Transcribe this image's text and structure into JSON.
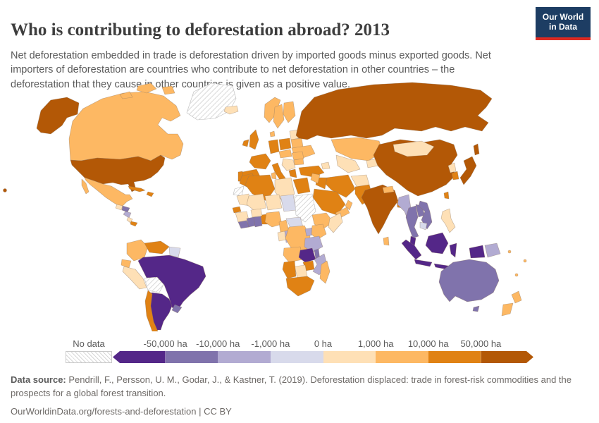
{
  "header": {
    "title": "Who is contributing to deforestation abroad? 2013",
    "logo_line1": "Our World",
    "logo_line2": "in Data"
  },
  "subtitle": "Net deforestation embedded in trade is deforestation driven by imported goods minus exported goods. Net importers of deforestation are countries who contribute to net deforestation in other countries – the deforestation that they cause in other countries is given as a positive value.",
  "legend": {
    "no_data_label": "No data",
    "tick_labels": [
      "-50,000 ha",
      "-10,000 ha",
      "-1,000 ha",
      "0 ha",
      "1,000 ha",
      "10,000 ha",
      "50,000 ha"
    ],
    "bin_colors": [
      "#542788",
      "#8073ac",
      "#b2abd2",
      "#d8daeb",
      "#fee0b6",
      "#fdb863",
      "#e08214",
      "#b35806"
    ]
  },
  "footer": {
    "source_label": "Data source:",
    "source_text": " Pendrill, F., Persson, U. M., Godar, J., & Kastner, T. (2019). Deforestation displaced: trade in forest-risk commodities and the prospects for a global forest transition.",
    "citation_line": "OurWorldinData.org/forests-and-deforestation | CC BY"
  },
  "chart_data": {
    "type": "choropleth-map",
    "title": "Who is contributing to deforestation abroad?",
    "year": 2013,
    "unit": "ha",
    "legend_position": "bottom",
    "no_data_style": "diagonal-hatch",
    "bins": [
      {
        "index": 0,
        "label": "less than -50,000 ha",
        "color": "#542788"
      },
      {
        "index": 1,
        "label": "-50,000 to -10,000 ha",
        "color": "#8073ac"
      },
      {
        "index": 2,
        "label": "-10,000 to -1,000 ha",
        "color": "#b2abd2"
      },
      {
        "index": 3,
        "label": "-1,000 to 0 ha",
        "color": "#d8daeb"
      },
      {
        "index": 4,
        "label": "0 to 1,000 ha",
        "color": "#fee0b6"
      },
      {
        "index": 5,
        "label": "1,000 to 10,000 ha",
        "color": "#fdb863"
      },
      {
        "index": 6,
        "label": "10,000 to 50,000 ha",
        "color": "#e08214"
      },
      {
        "index": 7,
        "label": "more than 50,000 ha",
        "color": "#b35806"
      }
    ],
    "countries": {
      "united-states": {
        "name": "United States",
        "bin": 7
      },
      "canada": {
        "name": "Canada",
        "bin": 5
      },
      "greenland": {
        "name": "Greenland",
        "bin": -1
      },
      "mexico": {
        "name": "Mexico",
        "bin": 5
      },
      "guatemala": {
        "name": "Guatemala",
        "bin": 4
      },
      "honduras": {
        "name": "Honduras",
        "bin": 1
      },
      "nicaragua": {
        "name": "Nicaragua",
        "bin": 2
      },
      "costa-rica": {
        "name": "Costa Rica",
        "bin": 4
      },
      "panama": {
        "name": "Panama",
        "bin": 6
      },
      "cuba": {
        "name": "Cuba",
        "bin": 6
      },
      "hispaniola": {
        "name": "Haiti / Dominican Republic",
        "bin": 6
      },
      "colombia": {
        "name": "Colombia",
        "bin": 5
      },
      "venezuela": {
        "name": "Venezuela",
        "bin": 6
      },
      "guyanas": {
        "name": "Guyana / Suriname / French Guiana",
        "bin": 3
      },
      "ecuador": {
        "name": "Ecuador",
        "bin": 5
      },
      "peru": {
        "name": "Peru",
        "bin": 4
      },
      "bolivia": {
        "name": "Bolivia",
        "bin": -1
      },
      "brazil": {
        "name": "Brazil",
        "bin": 0
      },
      "paraguay": {
        "name": "Paraguay",
        "bin": 0
      },
      "uruguay": {
        "name": "Uruguay",
        "bin": 1
      },
      "argentina": {
        "name": "Argentina",
        "bin": 0
      },
      "chile": {
        "name": "Chile",
        "bin": 6
      },
      "iceland": {
        "name": "Iceland",
        "bin": 4
      },
      "norway": {
        "name": "Norway",
        "bin": 5
      },
      "sweden": {
        "name": "Sweden",
        "bin": 5
      },
      "finland": {
        "name": "Finland",
        "bin": 5
      },
      "denmark": {
        "name": "Denmark",
        "bin": 5
      },
      "united-kingdom": {
        "name": "United Kingdom",
        "bin": 6
      },
      "ireland": {
        "name": "Ireland",
        "bin": 6
      },
      "france": {
        "name": "France",
        "bin": 6
      },
      "spain": {
        "name": "Spain",
        "bin": 6
      },
      "portugal": {
        "name": "Portugal",
        "bin": 6
      },
      "germany": {
        "name": "Germany",
        "bin": 6
      },
      "poland": {
        "name": "Poland",
        "bin": 6
      },
      "baltics": {
        "name": "Baltic states",
        "bin": 4
      },
      "belarus": {
        "name": "Belarus",
        "bin": 5
      },
      "ukraine": {
        "name": "Ukraine",
        "bin": 5
      },
      "central-europe": {
        "name": "Czechia / Austria / Hungary",
        "bin": 5
      },
      "romania": {
        "name": "Romania",
        "bin": 5
      },
      "bulgaria": {
        "name": "Bulgaria",
        "bin": 5
      },
      "balkans": {
        "name": "Western Balkans",
        "bin": 4
      },
      "greece": {
        "name": "Greece",
        "bin": 6
      },
      "italy": {
        "name": "Italy",
        "bin": 6
      },
      "turkey": {
        "name": "Turkey",
        "bin": 6
      },
      "russia": {
        "name": "Russia",
        "bin": 7
      },
      "kazakhstan": {
        "name": "Kazakhstan",
        "bin": 5
      },
      "uzbekistan-turkmenistan": {
        "name": "Uzbekistan / Turkmenistan",
        "bin": 4
      },
      "kyrgyzstan-tajikistan": {
        "name": "Kyrgyzstan / Tajikistan",
        "bin": 4
      },
      "caucasus": {
        "name": "Caucasus states",
        "bin": 4
      },
      "iran": {
        "name": "Iran",
        "bin": 6
      },
      "iraq": {
        "name": "Iraq",
        "bin": 6
      },
      "levant": {
        "name": "Syria / Jordan / Israel",
        "bin": 5
      },
      "saudi-arabia": {
        "name": "Saudi Arabia",
        "bin": 6
      },
      "yemen": {
        "name": "Yemen",
        "bin": 5
      },
      "oman": {
        "name": "Oman",
        "bin": 5
      },
      "afghanistan": {
        "name": "Afghanistan",
        "bin": 4
      },
      "pakistan": {
        "name": "Pakistan",
        "bin": 6
      },
      "india": {
        "name": "India",
        "bin": 7
      },
      "nepal": {
        "name": "Nepal",
        "bin": 5
      },
      "bangladesh": {
        "name": "Bangladesh",
        "bin": 6
      },
      "sri-lanka": {
        "name": "Sri Lanka",
        "bin": 5
      },
      "china": {
        "name": "China",
        "bin": 7
      },
      "mongolia": {
        "name": "Mongolia",
        "bin": 4
      },
      "north-korea": {
        "name": "North Korea",
        "bin": 4
      },
      "south-korea": {
        "name": "South Korea",
        "bin": 6
      },
      "japan": {
        "name": "Japan",
        "bin": 7
      },
      "taiwan": {
        "name": "Taiwan",
        "bin": 6
      },
      "myanmar": {
        "name": "Myanmar",
        "bin": 2
      },
      "thailand": {
        "name": "Thailand",
        "bin": 1
      },
      "laos": {
        "name": "Laos",
        "bin": 1
      },
      "vietnam": {
        "name": "Vietnam",
        "bin": 1
      },
      "cambodia": {
        "name": "Cambodia",
        "bin": 3
      },
      "malaysia": {
        "name": "Malaysia",
        "bin": 0
      },
      "indonesia": {
        "name": "Indonesia",
        "bin": 0
      },
      "papua-new-guinea": {
        "name": "Papua New Guinea",
        "bin": 2
      },
      "philippines": {
        "name": "Philippines",
        "bin": 4
      },
      "australia": {
        "name": "Australia",
        "bin": 1
      },
      "new-zealand": {
        "name": "New Zealand",
        "bin": 5
      },
      "pacific-islands": {
        "name": "Pacific islands",
        "bin": 5
      },
      "morocco": {
        "name": "Morocco",
        "bin": 6
      },
      "western-sahara": {
        "name": "Western Sahara",
        "bin": -1
      },
      "algeria": {
        "name": "Algeria",
        "bin": 6
      },
      "tunisia": {
        "name": "Tunisia",
        "bin": 5
      },
      "libya": {
        "name": "Libya",
        "bin": 4
      },
      "egypt": {
        "name": "Egypt",
        "bin": 6
      },
      "mauritania": {
        "name": "Mauritania",
        "bin": 4
      },
      "mali": {
        "name": "Mali",
        "bin": 4
      },
      "niger": {
        "name": "Niger",
        "bin": 4
      },
      "chad": {
        "name": "Chad",
        "bin": 3
      },
      "sudan": {
        "name": "Sudan",
        "bin": -1
      },
      "ethiopia": {
        "name": "Ethiopia",
        "bin": 5
      },
      "somalia": {
        "name": "Somalia",
        "bin": 4
      },
      "senegal": {
        "name": "Senegal",
        "bin": 6
      },
      "guinea": {
        "name": "Guinea",
        "bin": 4
      },
      "sierra-leone-liberia": {
        "name": "Sierra Leone / Liberia",
        "bin": 1
      },
      "cote-divoire": {
        "name": "Cote d'Ivoire",
        "bin": 1
      },
      "ghana": {
        "name": "Ghana",
        "bin": 1
      },
      "togo-benin": {
        "name": "Togo / Benin",
        "bin": 6
      },
      "burkina-faso": {
        "name": "Burkina Faso",
        "bin": 4
      },
      "nigeria": {
        "name": "Nigeria",
        "bin": 5
      },
      "cameroon": {
        "name": "Cameroon",
        "bin": 5
      },
      "central-african-republic": {
        "name": "Central African Republic",
        "bin": 3
      },
      "gabon": {
        "name": "Gabon",
        "bin": 4
      },
      "congo": {
        "name": "Congo",
        "bin": 2
      },
      "dr-congo": {
        "name": "Democratic Republic of Congo",
        "bin": 5
      },
      "uganda": {
        "name": "Uganda",
        "bin": 2
      },
      "kenya": {
        "name": "Kenya",
        "bin": 5
      },
      "tanzania": {
        "name": "Tanzania",
        "bin": 2
      },
      "angola": {
        "name": "Angola",
        "bin": 5
      },
      "zambia": {
        "name": "Zambia",
        "bin": 0
      },
      "malawi": {
        "name": "Malawi",
        "bin": 1
      },
      "mozambique": {
        "name": "Mozambique",
        "bin": 2
      },
      "zimbabwe": {
        "name": "Zimbabwe",
        "bin": 6
      },
      "botswana": {
        "name": "Botswana",
        "bin": 4
      },
      "namibia": {
        "name": "Namibia",
        "bin": 6
      },
      "south-africa": {
        "name": "South Africa",
        "bin": 6
      },
      "madagascar": {
        "name": "Madagascar",
        "bin": 5
      }
    }
  }
}
